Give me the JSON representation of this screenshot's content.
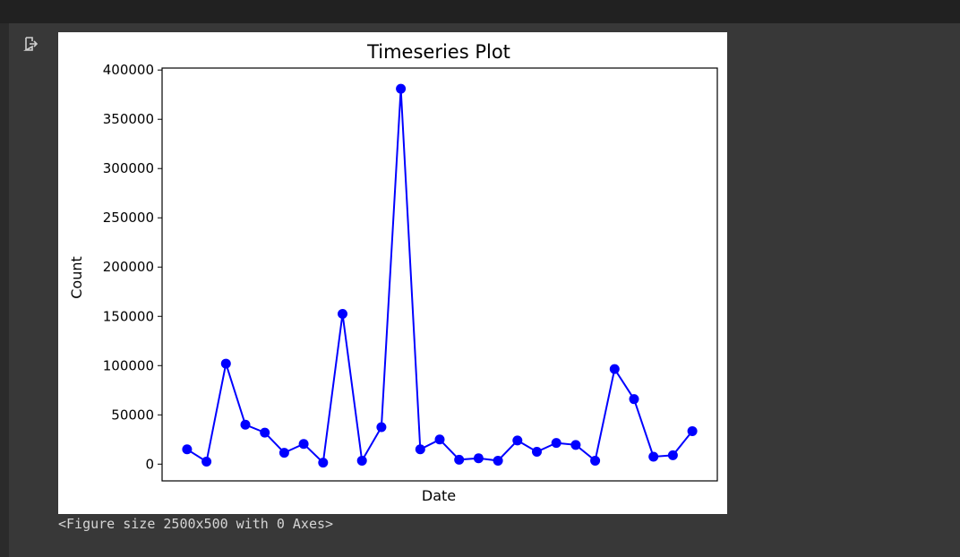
{
  "output": {
    "icon": "output-arrow-icon",
    "caption": "<Figure size 2500x500 with 0 Axes>"
  },
  "chart_data": {
    "type": "line",
    "title": "Timeseries Plot",
    "xlabel": "Date",
    "ylabel": "Count",
    "x_tick_labels": [],
    "ylim": [
      -17000,
      402000
    ],
    "yticks": [
      0,
      50000,
      100000,
      150000,
      200000,
      250000,
      300000,
      350000,
      400000
    ],
    "ytick_labels": [
      "0",
      "50000",
      "100000",
      "150000",
      "200000",
      "250000",
      "300000",
      "350000",
      "400000"
    ],
    "grid": false,
    "legend": "none",
    "color": "#0000ff",
    "marker": "circle",
    "series": [
      {
        "values": [
          15000,
          2500,
          102000,
          40000,
          32000,
          11500,
          20500,
          1500,
          152500,
          3500,
          37500,
          381000,
          15000,
          25000,
          4500,
          6000,
          3500,
          24000,
          12500,
          21500,
          19500,
          3500,
          96500,
          66000,
          7500,
          9000,
          33500
        ]
      }
    ]
  }
}
